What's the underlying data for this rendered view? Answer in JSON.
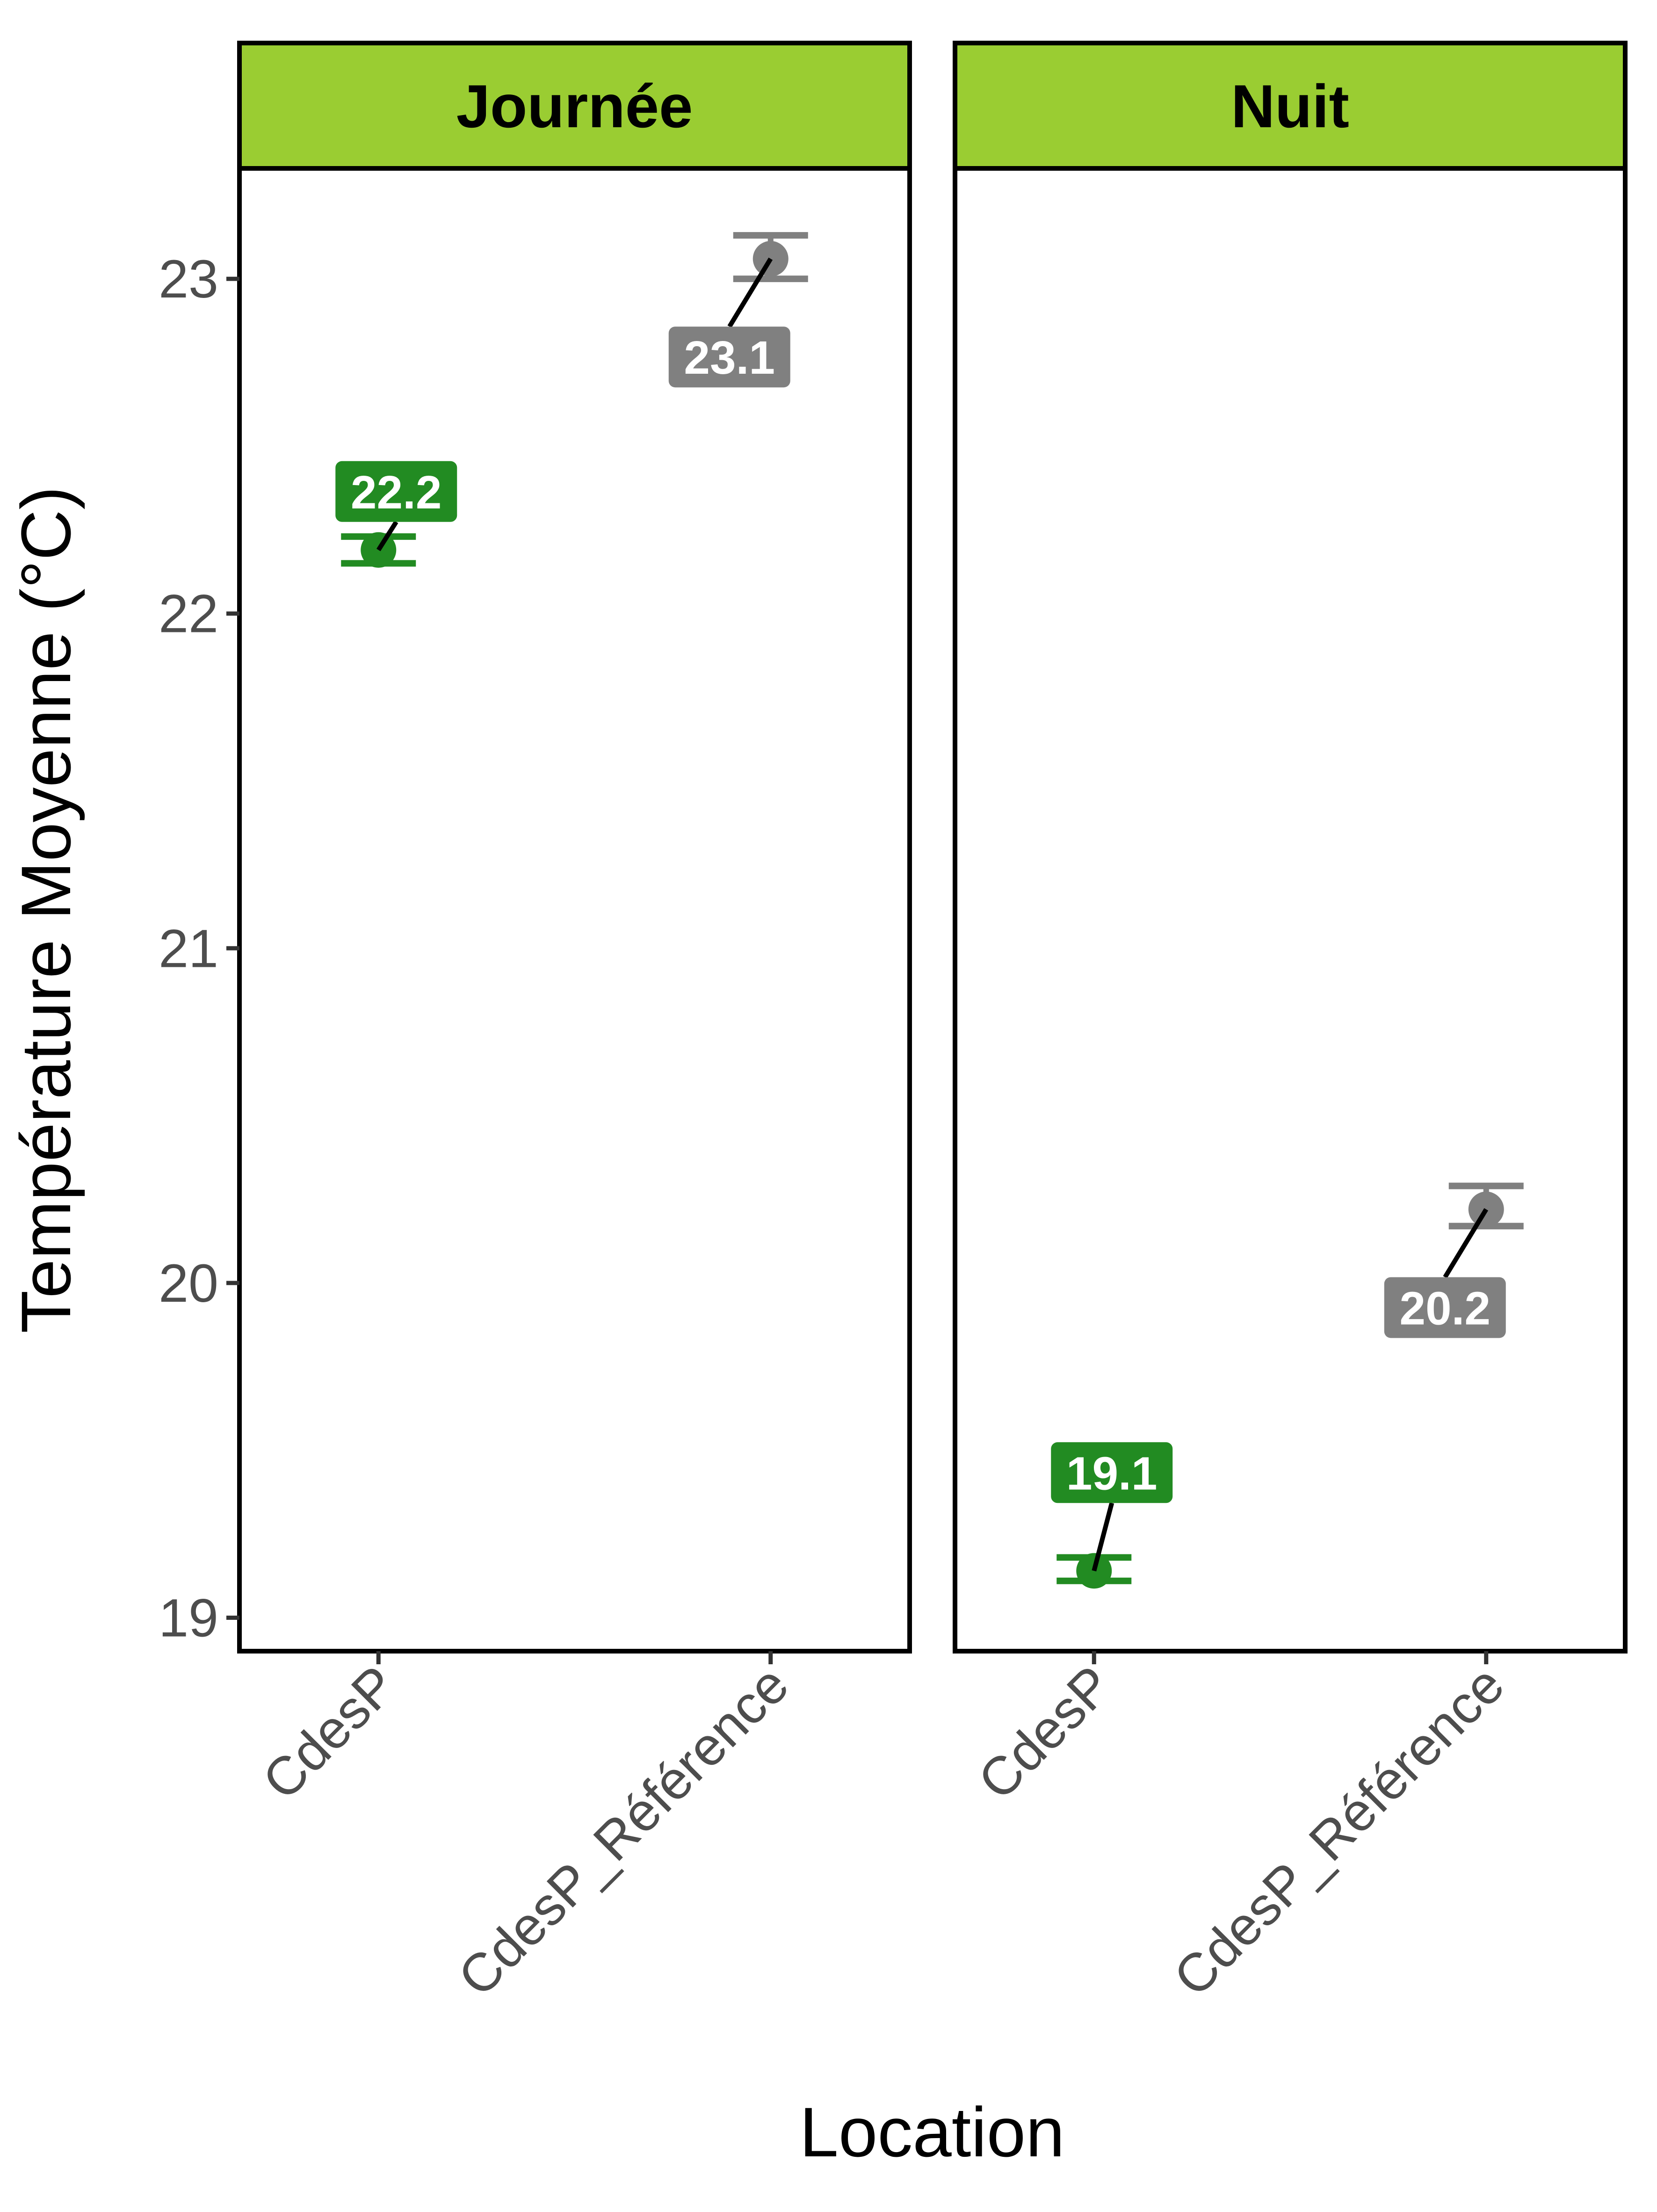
{
  "chart_data": {
    "type": "scatter",
    "facet_by": "period",
    "xlabel": "Location",
    "ylabel": "Température Moyenne (°C)",
    "ylim": [
      18.9,
      23.33
    ],
    "yticks": [
      19,
      20,
      21,
      22,
      23
    ],
    "categories": [
      "CdesP",
      "CdesP_Référence"
    ],
    "colors": {
      "CdesP": "#228B22",
      "CdesP_Référence": "#808080",
      "strip_background": "#9ACD32"
    },
    "grid": false,
    "panels": [
      {
        "strip": "Journée",
        "points": [
          {
            "x": "CdesP",
            "y": 22.19,
            "ymin": 22.15,
            "ymax": 22.23,
            "label": "22.2"
          },
          {
            "x": "CdesP_Référence",
            "y": 23.06,
            "ymin": 23.0,
            "ymax": 23.13,
            "label": "23.1"
          }
        ]
      },
      {
        "strip": "Nuit",
        "points": [
          {
            "x": "CdesP",
            "y": 19.14,
            "ymin": 19.11,
            "ymax": 19.18,
            "label": "19.1"
          },
          {
            "x": "CdesP_Référence",
            "y": 20.22,
            "ymin": 20.17,
            "ymax": 20.29,
            "label": "20.2"
          }
        ]
      }
    ]
  }
}
